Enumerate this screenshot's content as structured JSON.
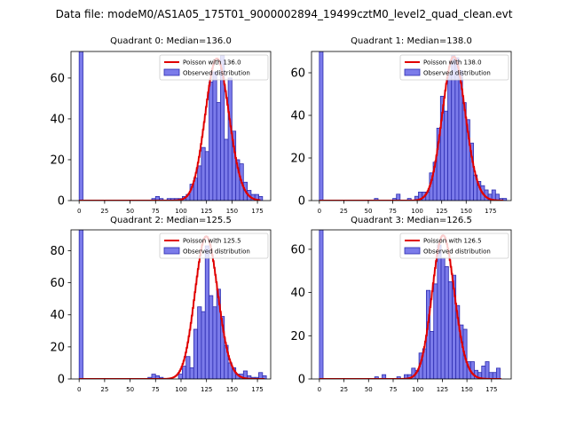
{
  "figure_title": "Data file: modeM0/AS1A05_175T01_9000002894_19499cztM0_level2_quad_clean.evt",
  "colors": {
    "bar_fill": "#7b7bea",
    "bar_edge": "#2c2cb0",
    "curve": "#e00000"
  },
  "chart_data": [
    {
      "type": "bar",
      "title": "Quadrant 0: Median=136.0",
      "bin_width": 3.75,
      "xlim": [
        -8,
        188
      ],
      "ylim": [
        0,
        73
      ],
      "xticks": [
        0,
        25,
        50,
        75,
        100,
        125,
        150,
        175
      ],
      "yticks": [
        0,
        20,
        40,
        60
      ],
      "bins": [
        [
          0,
          73
        ],
        [
          71.25,
          1
        ],
        [
          75,
          2
        ],
        [
          78.75,
          1
        ],
        [
          86.25,
          1
        ],
        [
          90,
          1
        ],
        [
          93.75,
          1
        ],
        [
          97.5,
          1
        ],
        [
          101.25,
          2
        ],
        [
          105,
          3
        ],
        [
          108.75,
          8
        ],
        [
          112.5,
          11
        ],
        [
          116.25,
          17
        ],
        [
          120,
          26
        ],
        [
          123.75,
          24
        ],
        [
          127.5,
          58
        ],
        [
          131.25,
          63
        ],
        [
          135,
          48
        ],
        [
          138.75,
          71
        ],
        [
          142.5,
          30
        ],
        [
          146.25,
          60
        ],
        [
          150,
          34
        ],
        [
          153.75,
          20
        ],
        [
          157.5,
          18
        ],
        [
          161.25,
          9
        ],
        [
          165,
          5
        ],
        [
          168.75,
          3
        ],
        [
          172.5,
          3
        ],
        [
          176.25,
          2
        ]
      ],
      "curve": {
        "label": "Poisson with 136.0",
        "mu": 136.0,
        "scale": 69.5,
        "x_range": [
          0,
          178
        ]
      },
      "legend": {
        "fit": "Poisson with 136.0",
        "observed": "Observed distribution"
      }
    },
    {
      "type": "bar",
      "title": "Quadrant 1: Median=138.0",
      "bin_width": 3.75,
      "xlim": [
        -8,
        196
      ],
      "ylim": [
        0,
        70
      ],
      "xticks": [
        0,
        25,
        50,
        75,
        100,
        125,
        150,
        175
      ],
      "yticks": [
        0,
        20,
        40,
        60
      ],
      "bins": [
        [
          0,
          70
        ],
        [
          56.25,
          1
        ],
        [
          75,
          1
        ],
        [
          78.75,
          3
        ],
        [
          90,
          1
        ],
        [
          97.5,
          2
        ],
        [
          101.25,
          4
        ],
        [
          105,
          4
        ],
        [
          108.75,
          4
        ],
        [
          112.5,
          13
        ],
        [
          116.25,
          18
        ],
        [
          120,
          34
        ],
        [
          123.75,
          49
        ],
        [
          127.5,
          42
        ],
        [
          131.25,
          59
        ],
        [
          135,
          68
        ],
        [
          138.75,
          67
        ],
        [
          142.5,
          61
        ],
        [
          146.25,
          46
        ],
        [
          150,
          38
        ],
        [
          153.75,
          27
        ],
        [
          157.5,
          12
        ],
        [
          161.25,
          9
        ],
        [
          165,
          7
        ],
        [
          168.75,
          5
        ],
        [
          172.5,
          3
        ],
        [
          176.25,
          5
        ],
        [
          180,
          3
        ],
        [
          183.75,
          1
        ],
        [
          187.5,
          1
        ]
      ],
      "curve": {
        "label": "Poisson with 138.0",
        "mu": 138.0,
        "scale": 67.5,
        "x_range": [
          0,
          188
        ]
      },
      "legend": {
        "fit": "Poisson with 138.0",
        "observed": "Observed distribution"
      }
    },
    {
      "type": "bar",
      "title": "Quadrant 2: Median=125.5",
      "bin_width": 3.75,
      "xlim": [
        -8,
        188
      ],
      "ylim": [
        0,
        93
      ],
      "xticks": [
        0,
        25,
        50,
        75,
        100,
        125,
        150,
        175
      ],
      "yticks": [
        0,
        20,
        40,
        60,
        80
      ],
      "bins": [
        [
          0,
          93
        ],
        [
          67.5,
          1
        ],
        [
          71.25,
          3
        ],
        [
          75,
          2
        ],
        [
          78.75,
          1
        ],
        [
          97.5,
          3
        ],
        [
          101.25,
          8
        ],
        [
          105,
          14
        ],
        [
          108.75,
          7
        ],
        [
          112.5,
          31
        ],
        [
          116.25,
          45
        ],
        [
          120,
          42
        ],
        [
          123.75,
          83
        ],
        [
          127.5,
          52
        ],
        [
          131.25,
          45
        ],
        [
          135,
          56
        ],
        [
          138.75,
          39
        ],
        [
          142.5,
          21
        ],
        [
          146.25,
          10
        ],
        [
          150,
          7
        ],
        [
          153.75,
          3
        ],
        [
          157.5,
          3
        ],
        [
          161.25,
          5
        ],
        [
          165,
          2
        ],
        [
          168.75,
          1
        ],
        [
          172.5,
          1
        ],
        [
          176.25,
          4
        ],
        [
          180,
          2
        ]
      ],
      "curve": {
        "label": "Poisson with 125.5",
        "mu": 125.5,
        "scale": 89.0,
        "x_range": [
          0,
          182
        ]
      },
      "legend": {
        "fit": "Poisson with 125.5",
        "observed": "Observed distribution"
      }
    },
    {
      "type": "bar",
      "title": "Quadrant 3: Median=126.5",
      "bin_width": 3.75,
      "xlim": [
        -8,
        195
      ],
      "ylim": [
        0,
        69
      ],
      "xticks": [
        0,
        25,
        50,
        75,
        100,
        125,
        150,
        175
      ],
      "yticks": [
        0,
        20,
        40,
        60
      ],
      "bins": [
        [
          0,
          69
        ],
        [
          56.25,
          1
        ],
        [
          63.75,
          2
        ],
        [
          78.75,
          1
        ],
        [
          86.25,
          2
        ],
        [
          90,
          2
        ],
        [
          93.75,
          5
        ],
        [
          97.5,
          4
        ],
        [
          101.25,
          12
        ],
        [
          105,
          14
        ],
        [
          108.75,
          41
        ],
        [
          112.5,
          22
        ],
        [
          116.25,
          44
        ],
        [
          120,
          62
        ],
        [
          123.75,
          56
        ],
        [
          127.5,
          52
        ],
        [
          131.25,
          45
        ],
        [
          135,
          48
        ],
        [
          138.75,
          34
        ],
        [
          142.5,
          25
        ],
        [
          146.25,
          23
        ],
        [
          150,
          8
        ],
        [
          153.75,
          8
        ],
        [
          157.5,
          4
        ],
        [
          161.25,
          3
        ],
        [
          165,
          6
        ],
        [
          168.75,
          8
        ],
        [
          172.5,
          3
        ],
        [
          176.25,
          3
        ],
        [
          180,
          5
        ]
      ],
      "curve": {
        "label": "Poisson with 126.5",
        "mu": 126.5,
        "scale": 66.5,
        "x_range": [
          0,
          185
        ]
      },
      "legend": {
        "fit": "Poisson with 126.5",
        "observed": "Observed distribution"
      }
    }
  ]
}
